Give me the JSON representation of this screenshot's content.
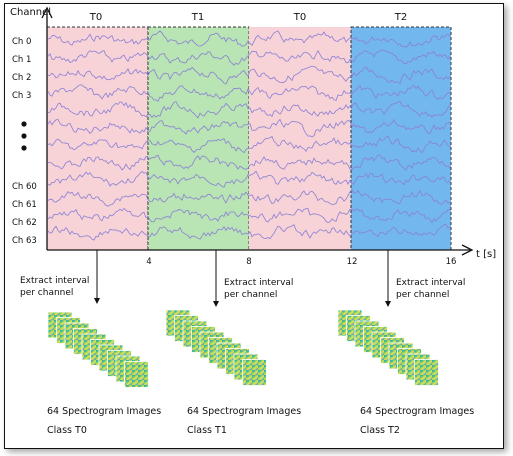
{
  "axis": {
    "y_title": "Channel",
    "x_title": "t [s]",
    "ticks": [
      "4",
      "8",
      "12",
      "16"
    ]
  },
  "segments": [
    {
      "label": "T0",
      "color": "#f7d2d6"
    },
    {
      "label": "T1",
      "color": "#b9e4b3"
    },
    {
      "label": "T0",
      "color": "#f7d2d6"
    },
    {
      "label": "T2",
      "color": "#72b8ef"
    }
  ],
  "channels": {
    "top": [
      "Ch 0",
      "Ch 1",
      "Ch 2",
      "Ch 3"
    ],
    "bottom": [
      "Ch 60",
      "Ch 61",
      "Ch 62",
      "Ch 63"
    ]
  },
  "extract_notes": [
    {
      "line1": "Extract interval",
      "line2": "per channel"
    },
    {
      "line1": "Extract interval",
      "line2": "per channel"
    },
    {
      "line1": "Extract interval",
      "line2": "per channel"
    }
  ],
  "groups": [
    {
      "line1": "64 Spectrogram Images",
      "line2": "Class T0"
    },
    {
      "line1": "64 Spectrogram Images",
      "line2": "Class T1"
    },
    {
      "line1": "64 Spectrogram Images",
      "line2": "Class T2"
    }
  ],
  "colors": {
    "wave": "#8a7fd6",
    "frame": "#111111"
  }
}
